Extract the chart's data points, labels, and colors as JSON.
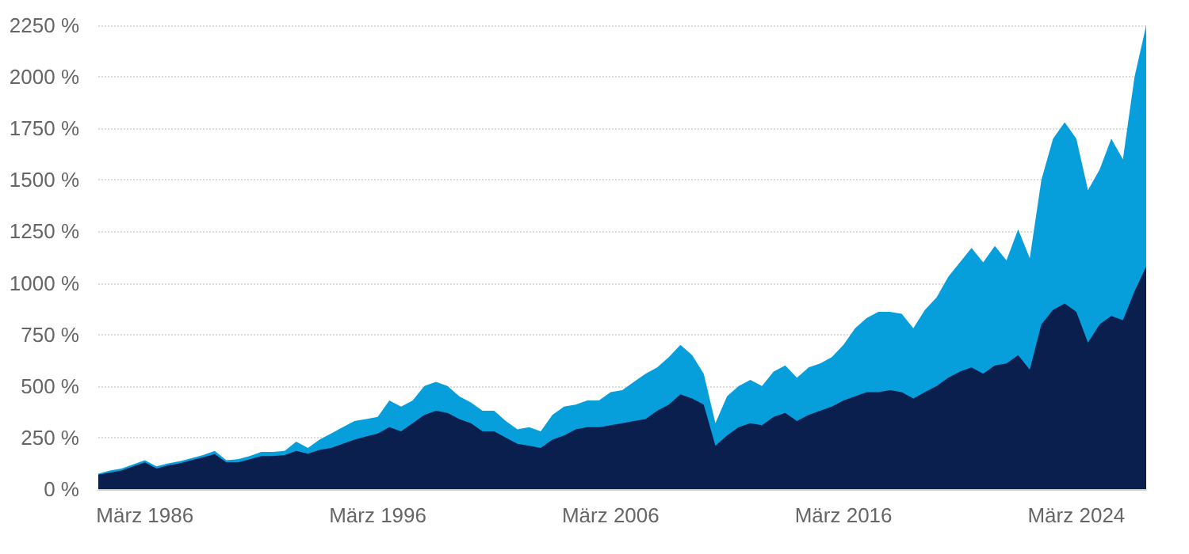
{
  "chart_data": {
    "type": "area",
    "categories": [
      null,
      null,
      null,
      null,
      "März 1986",
      null,
      null,
      null,
      null,
      null,
      null,
      null,
      null,
      null,
      null,
      null,
      null,
      null,
      null,
      null,
      null,
      null,
      null,
      null,
      "März 1996",
      null,
      null,
      null,
      null,
      null,
      null,
      null,
      null,
      null,
      null,
      null,
      null,
      null,
      null,
      null,
      null,
      null,
      null,
      null,
      "März 2006",
      null,
      null,
      null,
      null,
      null,
      null,
      null,
      null,
      null,
      null,
      null,
      null,
      null,
      null,
      null,
      null,
      null,
      null,
      null,
      "März 2016",
      null,
      null,
      null,
      null,
      null,
      null,
      null,
      null,
      null,
      null,
      null,
      null,
      null,
      null,
      null,
      null,
      null,
      null,
      null,
      "März 2024",
      null,
      null,
      null,
      null,
      null,
      null
    ],
    "series": [
      {
        "color": "#069fdb",
        "values": [
          75,
          90,
          100,
          120,
          140,
          110,
          125,
          135,
          150,
          165,
          185,
          140,
          145,
          160,
          180,
          180,
          185,
          230,
          200,
          240,
          270,
          300,
          330,
          340,
          350,
          430,
          400,
          430,
          500,
          520,
          500,
          450,
          420,
          380,
          380,
          330,
          290,
          300,
          280,
          360,
          400,
          410,
          430,
          430,
          470,
          480,
          520,
          560,
          590,
          640,
          700,
          650,
          560,
          320,
          450,
          500,
          530,
          500,
          570,
          600,
          540,
          590,
          610,
          640,
          700,
          780,
          830,
          860,
          860,
          850,
          780,
          870,
          930,
          1030,
          1100,
          1170,
          1100,
          1180,
          1110,
          1260,
          1120,
          1500,
          1700,
          1780,
          1700,
          1450,
          1550,
          1700,
          1600,
          2000,
          2250
        ]
      },
      {
        "color": "#0b1f4f",
        "values": [
          70,
          80,
          90,
          110,
          130,
          100,
          115,
          125,
          140,
          155,
          170,
          130,
          130,
          145,
          160,
          160,
          165,
          185,
          172,
          190,
          200,
          220,
          240,
          255,
          270,
          300,
          280,
          320,
          360,
          380,
          370,
          340,
          320,
          280,
          280,
          250,
          220,
          210,
          200,
          240,
          260,
          290,
          300,
          300,
          310,
          320,
          330,
          340,
          380,
          410,
          460,
          440,
          410,
          210,
          260,
          300,
          320,
          310,
          350,
          370,
          330,
          360,
          380,
          400,
          430,
          450,
          470,
          470,
          480,
          470,
          440,
          470,
          500,
          540,
          570,
          590,
          560,
          600,
          610,
          650,
          580,
          800,
          870,
          900,
          860,
          710,
          800,
          840,
          820,
          960,
          1080
        ]
      }
    ],
    "ylim": [
      0,
      2250
    ],
    "yticks": [
      {
        "value": 0,
        "label": "0 %"
      },
      {
        "value": 250,
        "label": "250 %"
      },
      {
        "value": 500,
        "label": "500 %"
      },
      {
        "value": 750,
        "label": "750 %"
      },
      {
        "value": 1000,
        "label": "1000 %"
      },
      {
        "value": 1250,
        "label": "1250 %"
      },
      {
        "value": 1500,
        "label": "1500 %"
      },
      {
        "value": 1750,
        "label": "1750 %"
      },
      {
        "value": 2000,
        "label": "2000 %"
      },
      {
        "value": 2250,
        "label": "2250 %"
      }
    ],
    "grid": "y"
  }
}
